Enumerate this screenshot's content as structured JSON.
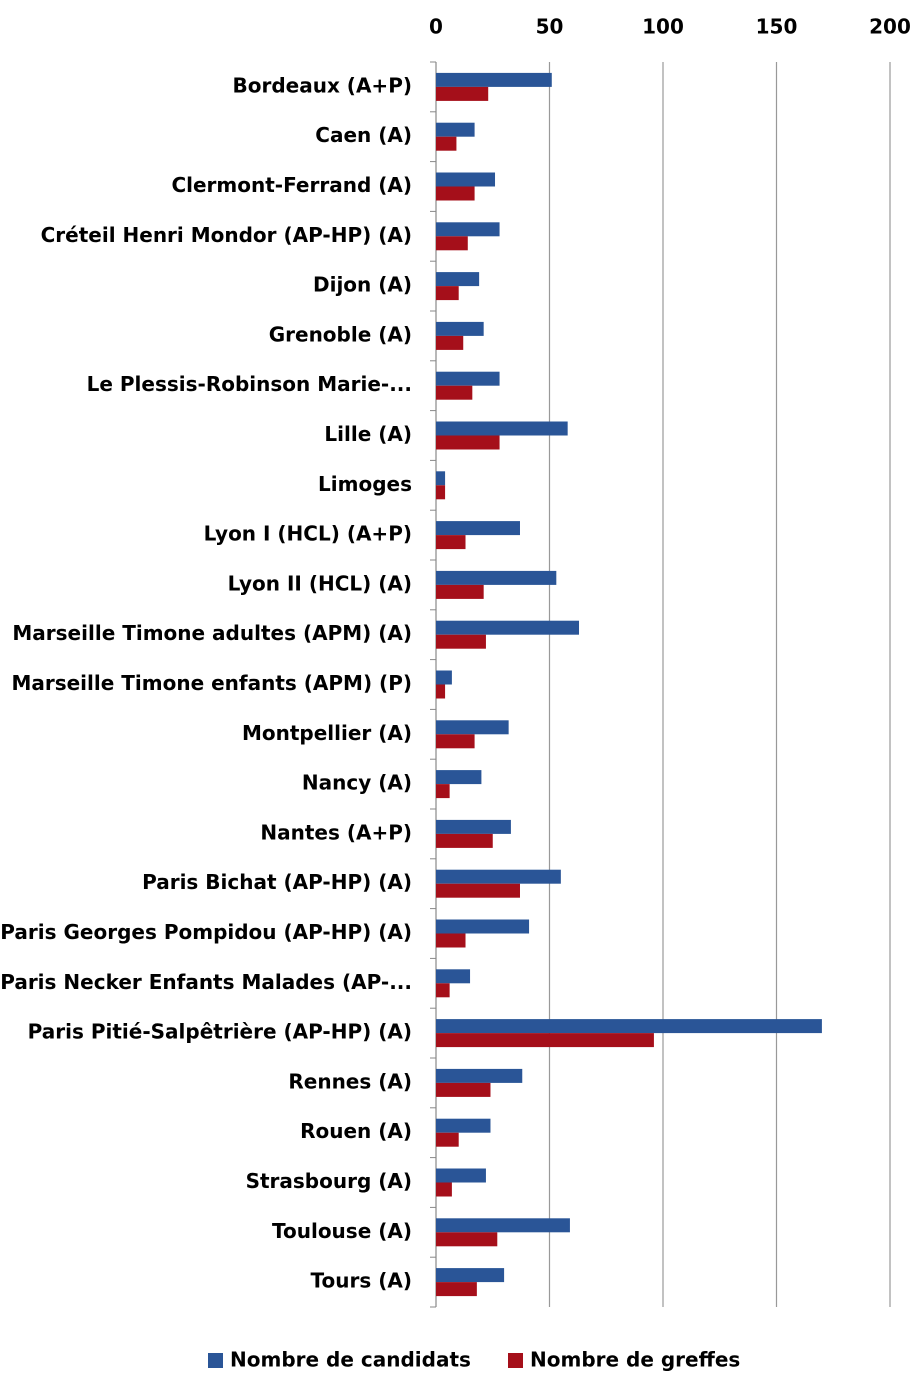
{
  "chart_data": {
    "type": "hbar",
    "categories": [
      "Bordeaux (A+P)",
      "Caen (A)",
      "Clermont-Ferrand (A)",
      "Créteil Henri Mondor (AP-HP) (A)",
      "Dijon (A)",
      "Grenoble (A)",
      "Le Plessis-Robinson Marie-...",
      "Lille (A)",
      "Limoges",
      "Lyon I (HCL) (A+P)",
      "Lyon II (HCL) (A)",
      "Marseille Timone adultes (APM) (A)",
      "Marseille Timone enfants (APM) (P)",
      "Montpellier (A)",
      "Nancy (A)",
      "Nantes (A+P)",
      "Paris Bichat (AP-HP) (A)",
      "Paris Georges Pompidou (AP-HP) (A)",
      "Paris Necker Enfants Malades (AP-...",
      "Paris Pitié-Salpêtrière (AP-HP) (A)",
      "Rennes (A)",
      "Rouen (A)",
      "Strasbourg (A)",
      "Toulouse (A)",
      "Tours (A)"
    ],
    "series": [
      {
        "name": "Nombre de candidats",
        "color": "#2a5597",
        "values": [
          51,
          17,
          26,
          28,
          19,
          21,
          28,
          58,
          4,
          37,
          53,
          63,
          7,
          32,
          20,
          33,
          55,
          41,
          15,
          170,
          38,
          24,
          22,
          59,
          30
        ]
      },
      {
        "name": "Nombre de greffes",
        "color": "#a50f1a",
        "values": [
          23,
          9,
          17,
          14,
          10,
          12,
          16,
          28,
          4,
          13,
          21,
          22,
          4,
          17,
          6,
          25,
          37,
          13,
          6,
          96,
          24,
          10,
          7,
          27,
          18
        ]
      }
    ],
    "xlim": [
      0,
      200
    ],
    "xticks": [
      0,
      50,
      100,
      150,
      200
    ],
    "grid": true,
    "legend": "bottom"
  }
}
